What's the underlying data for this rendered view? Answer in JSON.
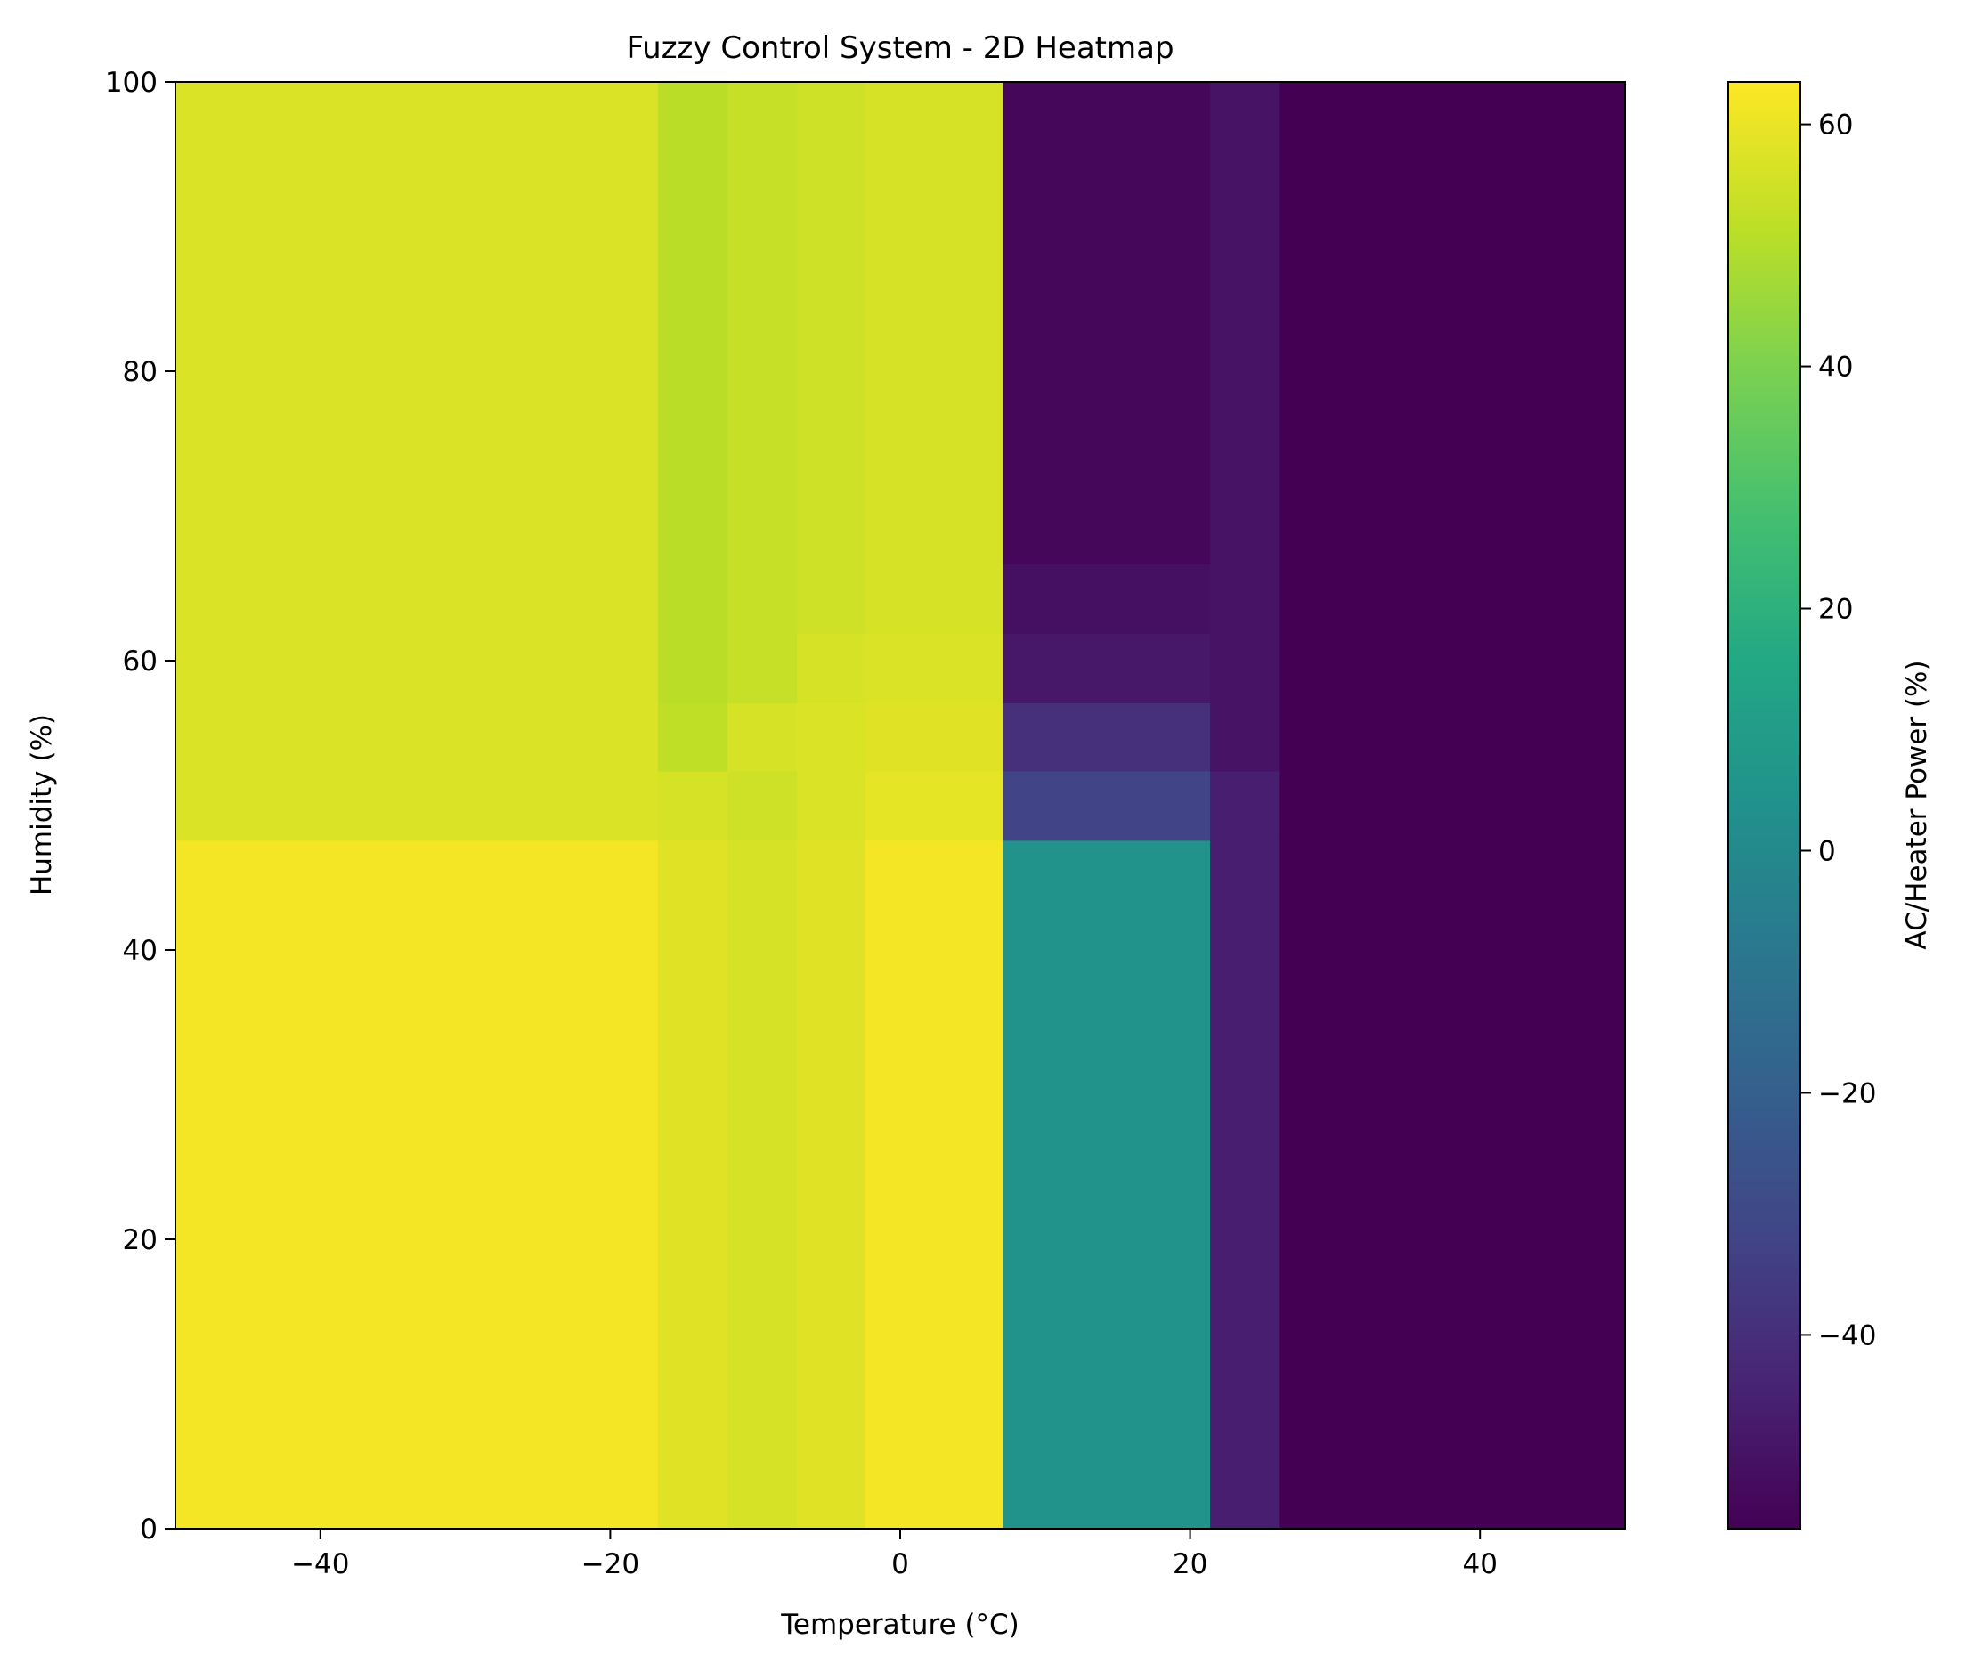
{
  "chart_data": {
    "type": "heatmap",
    "title": "Fuzzy Control System - 2D Heatmap",
    "xlabel": "Temperature (°C)",
    "ylabel": "Humidity (%)",
    "colorbar_label": "AC/Heater Power (%)",
    "colormap": "viridis",
    "xlim": [
      -50,
      50
    ],
    "ylim": [
      0,
      100
    ],
    "clim": [
      -56,
      63.5
    ],
    "xticks": [
      -40,
      -20,
      0,
      20,
      40
    ],
    "yticks": [
      0,
      20,
      40,
      60,
      80,
      100
    ],
    "colorbar_ticks": [
      -40,
      -20,
      0,
      20,
      40,
      60
    ],
    "x_edges": [
      -50,
      -16.7,
      -11.9,
      -7.1,
      -2.4,
      7.1,
      21.4,
      26.2,
      50
    ],
    "y_edges": [
      0,
      47.6,
      52.4,
      57.1,
      61.9,
      66.7,
      100
    ],
    "values": [
      [
        62,
        58,
        56,
        58,
        62,
        5,
        -46,
        -56
      ],
      [
        57,
        56,
        55,
        57,
        59,
        -32,
        -46,
        -56
      ],
      [
        57,
        52,
        56,
        57,
        58,
        -40,
        -50,
        -56
      ],
      [
        57,
        51,
        53,
        56,
        57,
        -48,
        -50,
        -56
      ],
      [
        57,
        51,
        53,
        55,
        56,
        -51,
        -50,
        -56
      ],
      [
        57,
        51,
        53,
        55,
        56,
        -54,
        -50,
        -56
      ]
    ]
  }
}
